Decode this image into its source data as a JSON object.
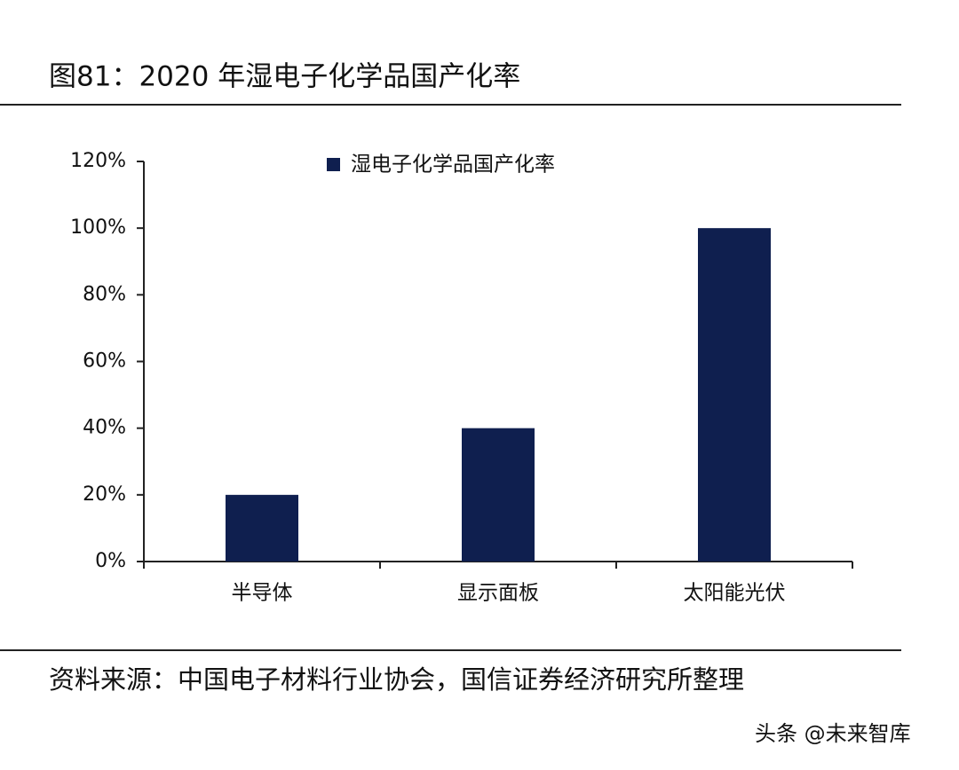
{
  "chart_data": {
    "type": "bar",
    "title": "图81：2020 年湿电子化学品国产化率",
    "categories": [
      "半导体",
      "显示面板",
      "太阳能光伏"
    ],
    "series": [
      {
        "name": "湿电子化学品国产化率",
        "color": "#0f1f4f",
        "values": [
          20,
          40,
          100
        ]
      }
    ],
    "ylim": [
      0,
      120
    ],
    "yticks": [
      {
        "value": 0,
        "label": "0%"
      },
      {
        "value": 20,
        "label": "20%"
      },
      {
        "value": 40,
        "label": "40%"
      },
      {
        "value": 60,
        "label": "60%"
      },
      {
        "value": 80,
        "label": "80%"
      },
      {
        "value": 100,
        "label": "100%"
      },
      {
        "value": 120,
        "label": "120%"
      }
    ],
    "grid": false,
    "source": "资料来源：中国电子材料行业协会，国信证券经济研究所整理",
    "watermark": "头条 @未来智库"
  }
}
